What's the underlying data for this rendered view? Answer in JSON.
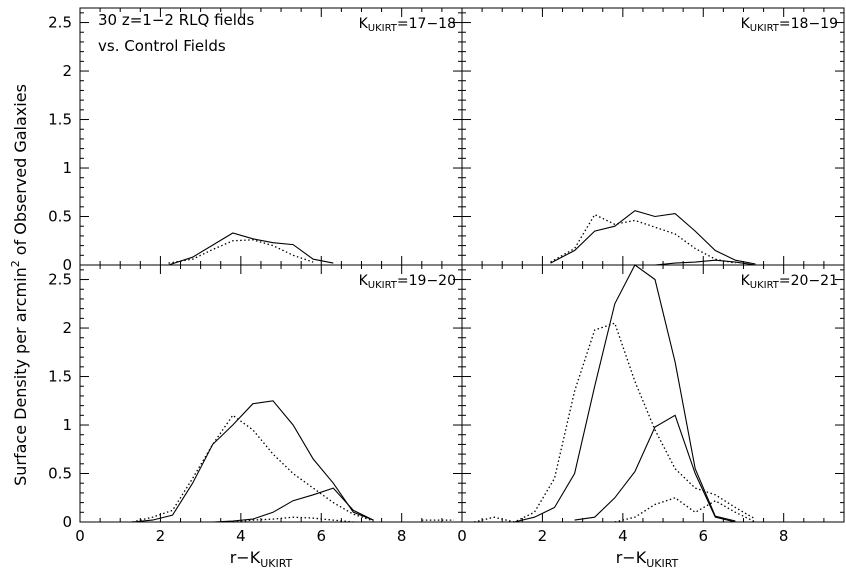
{
  "figure": {
    "ylabel": "Surface Density per arcmin",
    "ylabel_sup": "2",
    "ylabel_tail": " of Observed Galaxies",
    "xlabel_main": "r−K",
    "xlabel_sub": "UKIRT",
    "annotation_line1": "30 z=1−2 RLQ fields",
    "annotation_line2": "vs. Control Fields"
  },
  "chart_data": [
    {
      "type": "line",
      "panel_label_main": "K",
      "panel_label_sub": "UKIRT",
      "panel_label_range": "=17−18",
      "xlim": [
        0,
        9.5
      ],
      "ylim": [
        0,
        2.65
      ],
      "xticks": [
        0,
        2,
        4,
        6,
        8
      ],
      "yticks": [
        0,
        0.5,
        1,
        1.5,
        2,
        2.5
      ],
      "series": [
        {
          "style": "solid",
          "x": [
            2.2,
            2.8,
            3.8,
            4.3,
            4.8,
            5.3,
            5.8,
            6.3
          ],
          "y": [
            0.0,
            0.08,
            0.33,
            0.27,
            0.23,
            0.21,
            0.06,
            0.02
          ]
        },
        {
          "style": "dotted",
          "x": [
            2.2,
            2.8,
            3.3,
            3.8,
            4.3,
            4.8,
            5.3,
            5.8
          ],
          "y": [
            0.02,
            0.06,
            0.16,
            0.25,
            0.26,
            0.2,
            0.1,
            0.03
          ]
        }
      ]
    },
    {
      "type": "line",
      "panel_label_main": "K",
      "panel_label_sub": "UKIRT",
      "panel_label_range": "=18−19",
      "xlim": [
        0,
        9.5
      ],
      "ylim": [
        0,
        2.65
      ],
      "xticks": [
        0,
        2,
        4,
        6,
        8
      ],
      "yticks": [
        0,
        0.5,
        1,
        1.5,
        2,
        2.5
      ],
      "series": [
        {
          "style": "solid",
          "x": [
            2.2,
            2.8,
            3.3,
            3.8,
            4.3,
            4.8,
            5.3,
            5.8,
            6.3,
            6.8,
            7.3
          ],
          "y": [
            0.02,
            0.15,
            0.35,
            0.4,
            0.56,
            0.5,
            0.53,
            0.35,
            0.15,
            0.05,
            0.01
          ]
        },
        {
          "style": "dotted",
          "x": [
            2.2,
            2.8,
            3.3,
            3.8,
            4.3,
            4.8,
            5.3,
            5.8,
            6.3,
            6.8
          ],
          "y": [
            0.03,
            0.17,
            0.52,
            0.42,
            0.46,
            0.39,
            0.32,
            0.17,
            0.06,
            0.02
          ]
        },
        {
          "style": "solid",
          "x": [
            4.3,
            4.8,
            5.3,
            5.8,
            6.3,
            6.8,
            7.3
          ],
          "y": [
            0.0,
            0.0,
            0.02,
            0.03,
            0.05,
            0.03,
            0.0
          ]
        }
      ]
    },
    {
      "type": "line",
      "panel_label_main": "K",
      "panel_label_sub": "UKIRT",
      "panel_label_range": "=19−20",
      "xlim": [
        0,
        9.5
      ],
      "ylim": [
        0,
        2.65
      ],
      "xticks": [
        0,
        2,
        4,
        6,
        8
      ],
      "yticks": [
        0,
        0.5,
        1,
        1.5,
        2,
        2.5
      ],
      "series": [
        {
          "style": "solid",
          "x": [
            1.3,
            1.8,
            2.3,
            2.8,
            3.3,
            3.8,
            4.3,
            4.8,
            5.3,
            5.8,
            6.3,
            6.8,
            7.3
          ],
          "y": [
            0.0,
            0.02,
            0.07,
            0.4,
            0.8,
            1.0,
            1.22,
            1.25,
            1.0,
            0.65,
            0.4,
            0.1,
            0.02
          ]
        },
        {
          "style": "dotted",
          "x": [
            1.3,
            1.8,
            2.3,
            2.8,
            3.3,
            3.8,
            4.3,
            4.8,
            5.3,
            5.8,
            6.3,
            6.8,
            7.3
          ],
          "y": [
            0.0,
            0.05,
            0.12,
            0.45,
            0.8,
            1.1,
            0.95,
            0.7,
            0.5,
            0.35,
            0.2,
            0.08,
            0.01
          ]
        },
        {
          "style": "solid",
          "x": [
            3.3,
            3.8,
            4.3,
            4.8,
            5.3,
            5.8,
            6.3,
            6.8,
            7.3
          ],
          "y": [
            0.0,
            0.01,
            0.03,
            0.1,
            0.22,
            0.28,
            0.35,
            0.12,
            0.02
          ]
        },
        {
          "style": "dotted",
          "x": [
            3.8,
            4.3,
            4.8,
            5.3,
            5.8,
            6.3,
            6.8
          ],
          "y": [
            0.0,
            0.02,
            0.03,
            0.05,
            0.04,
            0.02,
            0.0
          ]
        },
        {
          "style": "dotted",
          "x": [
            8.5,
            9.3
          ],
          "y": [
            0.02,
            0.02
          ]
        }
      ]
    },
    {
      "type": "line",
      "panel_label_main": "K",
      "panel_label_sub": "UKIRT",
      "panel_label_range": "=20−21",
      "xlim": [
        0,
        9.5
      ],
      "ylim": [
        0,
        2.65
      ],
      "xticks": [
        0,
        2,
        4,
        6,
        8
      ],
      "yticks": [
        0,
        0.5,
        1,
        1.5,
        2,
        2.5
      ],
      "series": [
        {
          "style": "solid",
          "x": [
            1.3,
            1.8,
            2.3,
            2.8,
            3.3,
            3.8,
            4.3,
            4.8,
            5.3,
            5.8,
            6.3,
            6.8
          ],
          "y": [
            0.0,
            0.05,
            0.15,
            0.5,
            1.4,
            2.25,
            2.65,
            2.5,
            1.65,
            0.55,
            0.06,
            0.01
          ]
        },
        {
          "style": "dotted",
          "x": [
            0.3,
            0.8,
            1.3,
            1.8,
            2.3,
            2.8,
            3.3,
            3.8,
            4.3,
            4.8,
            5.3,
            5.8,
            6.3,
            6.8,
            7.3
          ],
          "y": [
            0.0,
            0.05,
            0.0,
            0.1,
            0.45,
            1.35,
            1.98,
            2.05,
            1.45,
            0.95,
            0.55,
            0.35,
            0.28,
            0.15,
            0.03
          ]
        },
        {
          "style": "solid",
          "x": [
            2.8,
            3.3,
            3.8,
            4.3,
            4.8,
            5.3,
            5.8,
            6.3,
            6.8
          ],
          "y": [
            0.02,
            0.05,
            0.25,
            0.52,
            0.98,
            1.1,
            0.5,
            0.05,
            0.0
          ]
        },
        {
          "style": "dotted",
          "x": [
            3.8,
            4.3,
            4.8,
            5.3,
            5.8,
            6.3,
            6.8,
            7.3
          ],
          "y": [
            0.0,
            0.05,
            0.18,
            0.25,
            0.1,
            0.22,
            0.1,
            0.0
          ]
        }
      ]
    }
  ]
}
